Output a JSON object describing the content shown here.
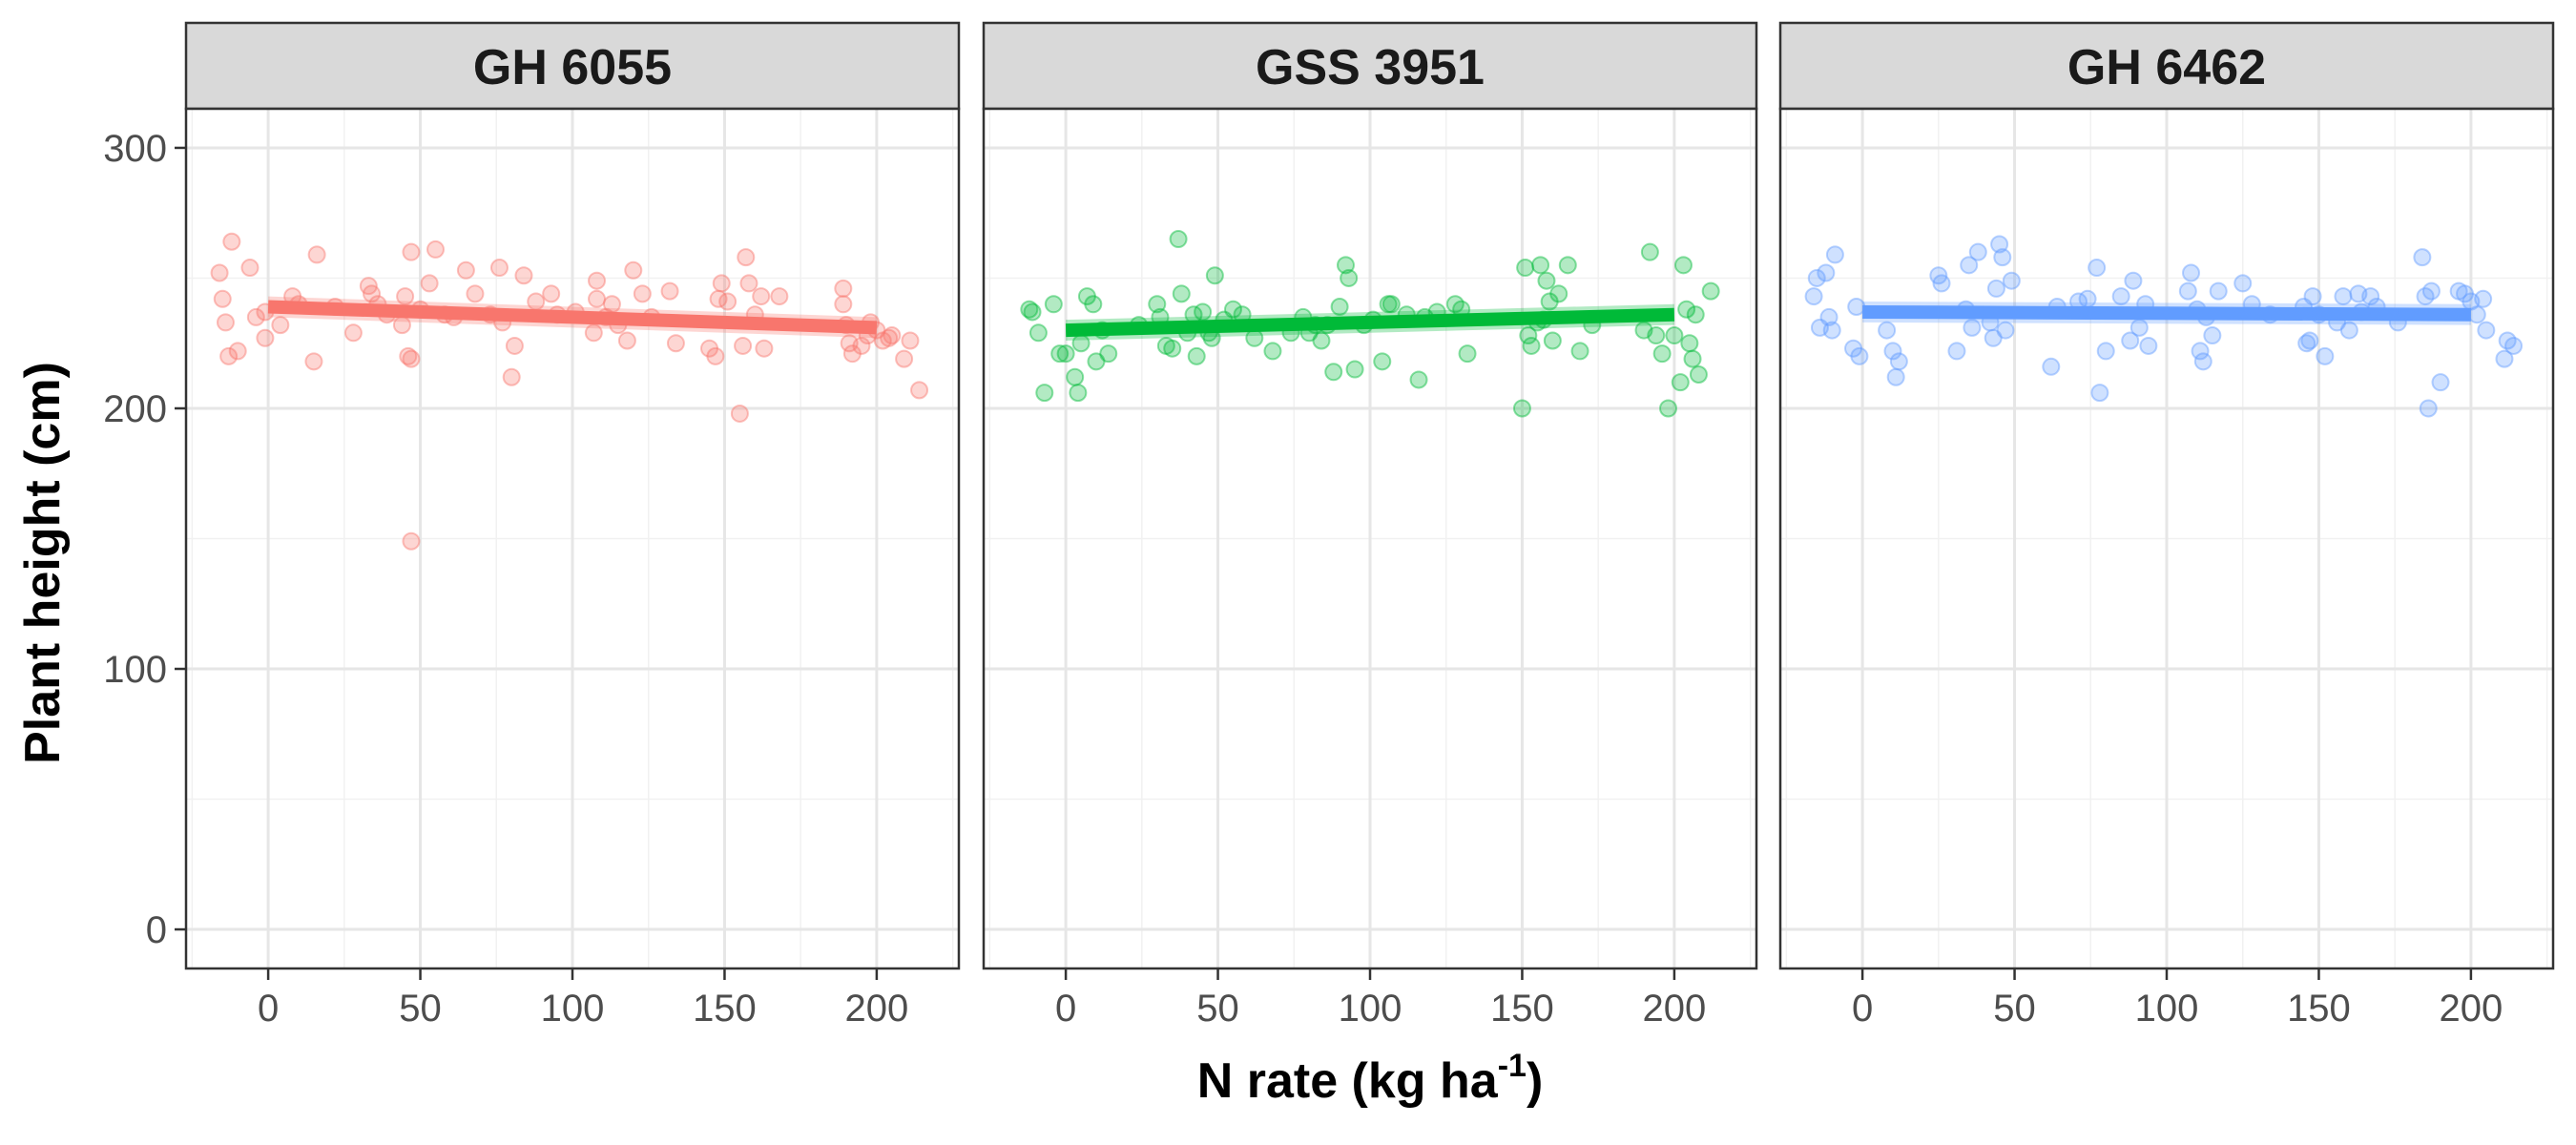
{
  "chart_data": {
    "type": "scatter",
    "facet_layout": "1 row x 3 columns",
    "xlabel": "N rate (kg ha",
    "xlabel_sup": "-1",
    "xlabel_end": ")",
    "ylabel": "Plant height (cm)",
    "xlim": [
      -27,
      227
    ],
    "ylim": [
      -15,
      315
    ],
    "x_ticks": [
      0,
      50,
      100,
      150,
      200
    ],
    "y_ticks": [
      0,
      100,
      200,
      300
    ],
    "grid": true,
    "legend": "none",
    "panels": [
      {
        "name": "GH 6055",
        "color": "#F8766D",
        "fit_line": {
          "x": [
            0,
            200
          ],
          "y": [
            239,
            231
          ]
        },
        "points": [
          [
            -16,
            252
          ],
          [
            -15,
            242
          ],
          [
            -14,
            233
          ],
          [
            -13,
            220
          ],
          [
            -12,
            264
          ],
          [
            -10,
            222
          ],
          [
            -6,
            254
          ],
          [
            -4,
            235
          ],
          [
            -1,
            237
          ],
          [
            -1,
            227
          ],
          [
            4,
            232
          ],
          [
            8,
            243
          ],
          [
            10,
            240
          ],
          [
            15,
            218
          ],
          [
            16,
            259
          ],
          [
            22,
            239
          ],
          [
            28,
            229
          ],
          [
            33,
            247
          ],
          [
            34,
            244
          ],
          [
            36,
            240
          ],
          [
            39,
            236
          ],
          [
            44,
            232
          ],
          [
            45,
            243
          ],
          [
            46,
            220
          ],
          [
            47,
            149
          ],
          [
            47,
            260
          ],
          [
            47,
            219
          ],
          [
            50,
            238
          ],
          [
            53,
            248
          ],
          [
            55,
            261
          ],
          [
            58,
            236
          ],
          [
            61,
            235
          ],
          [
            65,
            253
          ],
          [
            68,
            244
          ],
          [
            73,
            236
          ],
          [
            76,
            254
          ],
          [
            77,
            233
          ],
          [
            80,
            212
          ],
          [
            81,
            224
          ],
          [
            84,
            251
          ],
          [
            88,
            241
          ],
          [
            93,
            244
          ],
          [
            95,
            236
          ],
          [
            101,
            237
          ],
          [
            107,
            229
          ],
          [
            108,
            242
          ],
          [
            108,
            249
          ],
          [
            111,
            235
          ],
          [
            113,
            240
          ],
          [
            115,
            232
          ],
          [
            118,
            226
          ],
          [
            120,
            253
          ],
          [
            123,
            244
          ],
          [
            126,
            235
          ],
          [
            132,
            245
          ],
          [
            134,
            225
          ],
          [
            145,
            223
          ],
          [
            147,
            220
          ],
          [
            148,
            242
          ],
          [
            149,
            248
          ],
          [
            151,
            241
          ],
          [
            155,
            198
          ],
          [
            156,
            224
          ],
          [
            157,
            258
          ],
          [
            158,
            248
          ],
          [
            160,
            236
          ],
          [
            162,
            243
          ],
          [
            163,
            223
          ],
          [
            168,
            243
          ],
          [
            189,
            246
          ],
          [
            189,
            240
          ],
          [
            190,
            232
          ],
          [
            191,
            225
          ],
          [
            192,
            221
          ],
          [
            195,
            224
          ],
          [
            197,
            228
          ],
          [
            198,
            233
          ],
          [
            200,
            230
          ],
          [
            202,
            226
          ],
          [
            204,
            227
          ],
          [
            205,
            228
          ],
          [
            209,
            219
          ],
          [
            211,
            226
          ],
          [
            214,
            207
          ]
        ]
      },
      {
        "name": "GSS 3951",
        "color": "#00BA38",
        "fit_line": {
          "x": [
            0,
            200
          ],
          "y": [
            230,
            236
          ]
        },
        "points": [
          [
            -12,
            238
          ],
          [
            -11,
            237
          ],
          [
            -9,
            229
          ],
          [
            -7,
            206
          ],
          [
            -4,
            240
          ],
          [
            -2,
            221
          ],
          [
            0,
            221
          ],
          [
            3,
            212
          ],
          [
            4,
            206
          ],
          [
            5,
            225
          ],
          [
            7,
            243
          ],
          [
            9,
            240
          ],
          [
            10,
            218
          ],
          [
            12,
            230
          ],
          [
            14,
            221
          ],
          [
            24,
            232
          ],
          [
            30,
            240
          ],
          [
            31,
            235
          ],
          [
            33,
            224
          ],
          [
            35,
            223
          ],
          [
            37,
            265
          ],
          [
            38,
            244
          ],
          [
            40,
            229
          ],
          [
            42,
            236
          ],
          [
            43,
            220
          ],
          [
            45,
            237
          ],
          [
            47,
            229
          ],
          [
            48,
            227
          ],
          [
            49,
            251
          ],
          [
            52,
            234
          ],
          [
            55,
            238
          ],
          [
            58,
            236
          ],
          [
            62,
            227
          ],
          [
            68,
            222
          ],
          [
            74,
            229
          ],
          [
            78,
            235
          ],
          [
            80,
            229
          ],
          [
            82,
            232
          ],
          [
            84,
            226
          ],
          [
            86,
            232
          ],
          [
            88,
            214
          ],
          [
            90,
            239
          ],
          [
            92,
            255
          ],
          [
            93,
            250
          ],
          [
            95,
            215
          ],
          [
            98,
            232
          ],
          [
            101,
            234
          ],
          [
            104,
            218
          ],
          [
            106,
            240
          ],
          [
            107,
            240
          ],
          [
            112,
            236
          ],
          [
            116,
            211
          ],
          [
            118,
            235
          ],
          [
            122,
            237
          ],
          [
            128,
            240
          ],
          [
            130,
            238
          ],
          [
            132,
            221
          ],
          [
            150,
            200
          ],
          [
            151,
            254
          ],
          [
            152,
            228
          ],
          [
            153,
            224
          ],
          [
            155,
            233
          ],
          [
            156,
            255
          ],
          [
            157,
            234
          ],
          [
            158,
            249
          ],
          [
            159,
            241
          ],
          [
            160,
            226
          ],
          [
            162,
            244
          ],
          [
            165,
            255
          ],
          [
            169,
            222
          ],
          [
            173,
            232
          ],
          [
            190,
            230
          ],
          [
            192,
            260
          ],
          [
            194,
            228
          ],
          [
            196,
            221
          ],
          [
            198,
            200
          ],
          [
            200,
            228
          ],
          [
            202,
            210
          ],
          [
            203,
            255
          ],
          [
            204,
            238
          ],
          [
            205,
            225
          ],
          [
            206,
            219
          ],
          [
            207,
            236
          ],
          [
            208,
            213
          ],
          [
            212,
            245
          ]
        ]
      },
      {
        "name": "GH 6462",
        "color": "#619CFF",
        "fit_line": {
          "x": [
            0,
            200
          ],
          "y": [
            237,
            236
          ]
        },
        "points": [
          [
            -16,
            243
          ],
          [
            -15,
            250
          ],
          [
            -14,
            231
          ],
          [
            -12,
            252
          ],
          [
            -11,
            235
          ],
          [
            -10,
            230
          ],
          [
            -9,
            259
          ],
          [
            -3,
            223
          ],
          [
            -2,
            239
          ],
          [
            -1,
            220
          ],
          [
            8,
            230
          ],
          [
            10,
            222
          ],
          [
            11,
            212
          ],
          [
            12,
            218
          ],
          [
            25,
            251
          ],
          [
            26,
            248
          ],
          [
            31,
            222
          ],
          [
            34,
            238
          ],
          [
            35,
            255
          ],
          [
            36,
            231
          ],
          [
            38,
            260
          ],
          [
            42,
            233
          ],
          [
            43,
            227
          ],
          [
            44,
            246
          ],
          [
            45,
            263
          ],
          [
            46,
            258
          ],
          [
            47,
            230
          ],
          [
            49,
            249
          ],
          [
            62,
            216
          ],
          [
            64,
            239
          ],
          [
            71,
            241
          ],
          [
            74,
            242
          ],
          [
            77,
            254
          ],
          [
            78,
            206
          ],
          [
            80,
            222
          ],
          [
            85,
            243
          ],
          [
            88,
            226
          ],
          [
            89,
            249
          ],
          [
            91,
            231
          ],
          [
            93,
            240
          ],
          [
            94,
            224
          ],
          [
            107,
            245
          ],
          [
            108,
            252
          ],
          [
            110,
            238
          ],
          [
            111,
            222
          ],
          [
            112,
            218
          ],
          [
            113,
            235
          ],
          [
            115,
            228
          ],
          [
            117,
            245
          ],
          [
            125,
            248
          ],
          [
            128,
            240
          ],
          [
            134,
            236
          ],
          [
            145,
            239
          ],
          [
            146,
            225
          ],
          [
            147,
            226
          ],
          [
            148,
            243
          ],
          [
            150,
            236
          ],
          [
            152,
            220
          ],
          [
            156,
            233
          ],
          [
            158,
            243
          ],
          [
            160,
            230
          ],
          [
            163,
            244
          ],
          [
            164,
            237
          ],
          [
            167,
            243
          ],
          [
            169,
            239
          ],
          [
            176,
            233
          ],
          [
            184,
            258
          ],
          [
            185,
            243
          ],
          [
            186,
            200
          ],
          [
            187,
            245
          ],
          [
            190,
            210
          ],
          [
            196,
            245
          ],
          [
            198,
            244
          ],
          [
            200,
            241
          ],
          [
            202,
            236
          ],
          [
            204,
            242
          ],
          [
            205,
            230
          ],
          [
            211,
            219
          ],
          [
            212,
            226
          ],
          [
            214,
            224
          ]
        ]
      }
    ]
  }
}
